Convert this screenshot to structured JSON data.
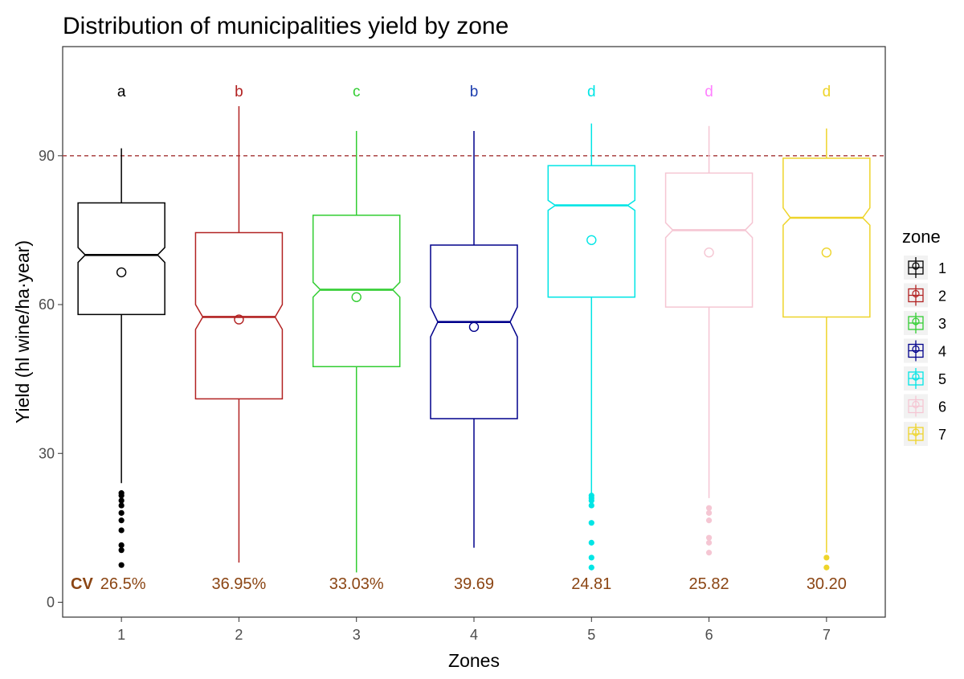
{
  "chart_data": {
    "type": "boxplot",
    "title": "Distribution of municipalities yield by zone",
    "xlabel": "Zones",
    "ylabel": "Yield (hl wine/ha·year)",
    "ylim": [
      -3,
      112
    ],
    "yticks": [
      0,
      30,
      60,
      90
    ],
    "grid": false,
    "reference_line": {
      "y": 90,
      "style": "dashed",
      "color": "#B05050"
    },
    "cv_label": "CV",
    "legend": {
      "title": "zone",
      "placement": "right"
    },
    "series": [
      {
        "name": "1",
        "color": "#000000",
        "letter": "a",
        "letter_color": "#000000",
        "cv": "26.5%",
        "min": 24,
        "q1": 58,
        "median": 70,
        "q3": 80.5,
        "max": 91.5,
        "notch_low": 68.5,
        "notch_high": 71.5,
        "mean": 66.5,
        "outliers": [
          7.5,
          10.5,
          11.5,
          14.5,
          16.5,
          18,
          19.5,
          20.5,
          21.5,
          22
        ]
      },
      {
        "name": "2",
        "color": "#B22222",
        "letter": "b",
        "letter_color": "#B22222",
        "cv": "36.95%",
        "min": 8,
        "q1": 41,
        "median": 57.5,
        "q3": 74.5,
        "max": 100,
        "notch_low": 55,
        "notch_high": 60,
        "mean": 57
      },
      {
        "name": "3",
        "color": "#32CD32",
        "letter": "c",
        "letter_color": "#32CD32",
        "cv": "33.03%",
        "min": 6,
        "q1": 47.5,
        "median": 63,
        "q3": 78,
        "max": 95,
        "notch_low": 61.5,
        "notch_high": 64.5,
        "mean": 61.5
      },
      {
        "name": "4",
        "color": "#00008B",
        "letter": "b",
        "letter_color": "#1E3FAF",
        "cv": "39.69",
        "min": 11,
        "q1": 37,
        "median": 56.5,
        "q3": 72,
        "max": 95,
        "notch_low": 53.5,
        "notch_high": 59.5,
        "mean": 55.5
      },
      {
        "name": "5",
        "color": "#00E5E5",
        "letter": "d",
        "letter_color": "#00E5E5",
        "cv": "24.81",
        "min": 22,
        "q1": 61.5,
        "median": 80,
        "q3": 88,
        "max": 96.5,
        "notch_low": 79,
        "notch_high": 81,
        "mean": 73,
        "outliers": [
          7,
          9,
          12,
          16,
          19.5,
          20.5,
          21,
          21.5
        ]
      },
      {
        "name": "6",
        "color": "#F5C6D3",
        "letter": "d",
        "letter_color": "#FF80FF",
        "cv": "25.82",
        "min": 21,
        "q1": 59.5,
        "median": 75,
        "q3": 86.5,
        "max": 96,
        "notch_low": 73.5,
        "notch_high": 76.5,
        "mean": 70.5,
        "outliers": [
          10,
          12,
          13,
          16.5,
          18,
          19
        ]
      },
      {
        "name": "7",
        "color": "#EED42A",
        "letter": "d",
        "letter_color": "#EED42A",
        "cv": "30.20",
        "min": 10,
        "q1": 57.5,
        "median": 77.5,
        "q3": 89.5,
        "max": 95.5,
        "notch_low": 76,
        "notch_high": 79.5,
        "mean": 70.5,
        "outliers": [
          7,
          9
        ]
      }
    ]
  }
}
